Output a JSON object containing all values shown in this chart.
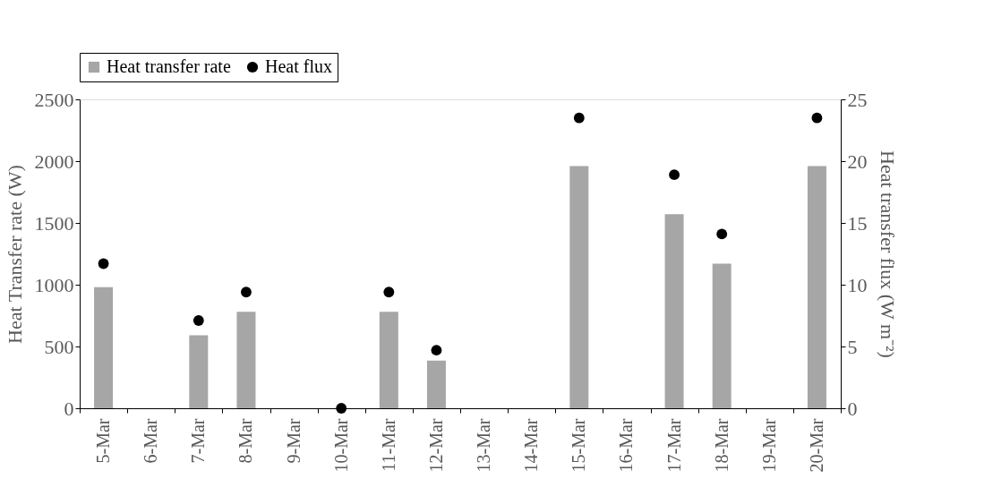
{
  "chart_data": {
    "type": "bar",
    "categories": [
      "5-Mar",
      "6-Mar",
      "7-Mar",
      "8-Mar",
      "9-Mar",
      "10-Mar",
      "11-Mar",
      "12-Mar",
      "13-Mar",
      "14-Mar",
      "15-Mar",
      "16-Mar",
      "17-Mar",
      "18-Mar",
      "19-Mar",
      "20-Mar"
    ],
    "ylabel": "Heat Transfer rate (W)",
    "y2label": "Heat transfer flux (W m⁻²)",
    "series": [
      {
        "name": "Heat transfer rate",
        "color": "#a6a6a6",
        "values": [
          980,
          null,
          590,
          780,
          null,
          null,
          780,
          385,
          null,
          null,
          1960,
          null,
          1570,
          1170,
          null,
          1960
        ]
      },
      {
        "name": "Heat flux",
        "type": "scatter",
        "axis": "y2",
        "color": "#000000",
        "marker": "circle",
        "values": [
          11.7,
          null,
          7.1,
          9.4,
          null,
          0,
          9.4,
          4.7,
          null,
          null,
          23.5,
          null,
          18.9,
          14.1,
          null,
          23.5
        ]
      }
    ],
    "ylim": [
      0,
      2500
    ],
    "yticks": [
      0,
      500,
      1000,
      1500,
      2000,
      2500
    ],
    "y2lim": [
      0,
      25
    ],
    "y2ticks": [
      0,
      5,
      10,
      15,
      20,
      25
    ],
    "grid": false,
    "legend": "top left"
  }
}
